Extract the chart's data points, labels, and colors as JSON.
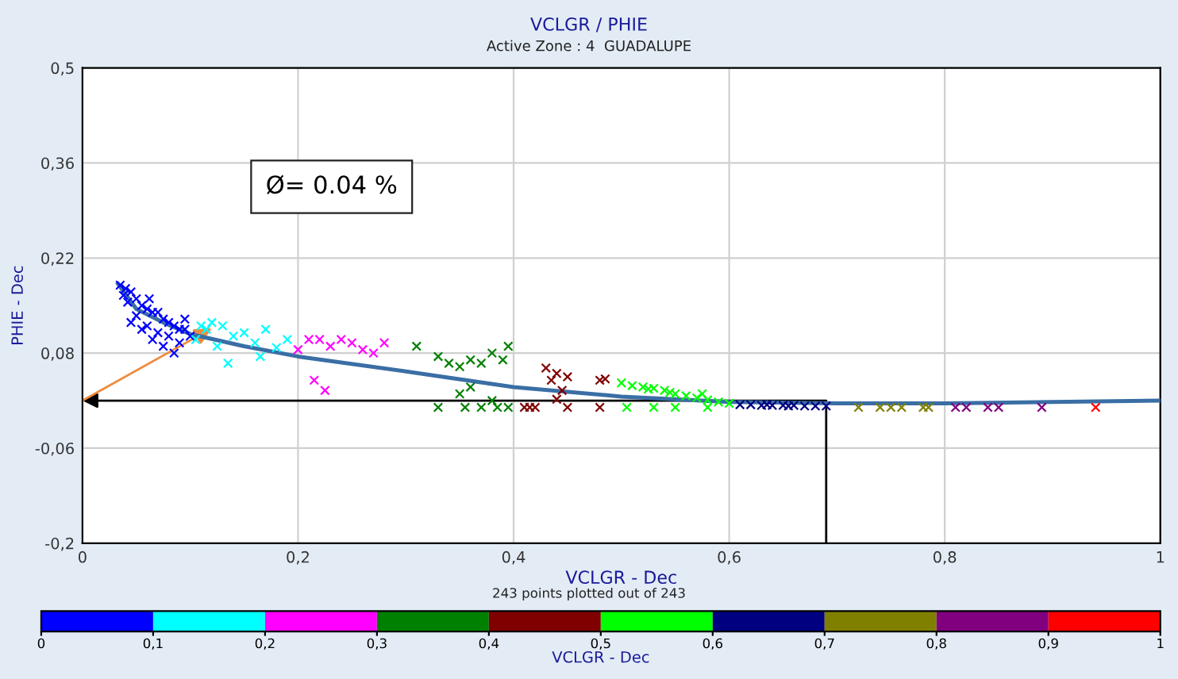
{
  "chart_data": {
    "type": "scatter",
    "title": "VCLGR / PHIE",
    "subtitle": "Active Zone : 4  GUADALUPE",
    "xlabel": "VCLGR - Dec",
    "ylabel": "PHIE - Dec",
    "clabel": "VCLGR - Dec",
    "annotations": [
      "243 points plotted out of 243",
      "Ø= 0.04 %"
    ],
    "xlim": [
      0,
      1
    ],
    "ylim": [
      -0.2,
      0.5
    ],
    "xticks": [
      0,
      {
        "value": 0.2,
        "label": "0,2"
      },
      {
        "value": 0.4,
        "label": "0,4"
      },
      {
        "value": 0.6,
        "label": "0,6"
      },
      {
        "value": 0.8,
        "label": "0,8"
      },
      1
    ],
    "yticks": [
      {
        "value": -0.2,
        "label": "-0,2"
      },
      {
        "value": -0.06,
        "label": "-0,06"
      },
      {
        "value": 0.08,
        "label": "0,08"
      },
      {
        "value": 0.22,
        "label": "0,22"
      },
      {
        "value": 0.36,
        "label": "0,36"
      },
      {
        "value": 0.5,
        "label": "0,5"
      }
    ],
    "clim": [
      0,
      1
    ],
    "cticks": [
      0,
      {
        "value": 0.1,
        "label": "0,1"
      },
      {
        "value": 0.2,
        "label": "0,2"
      },
      {
        "value": 0.3,
        "label": "0,3"
      },
      {
        "value": 0.4,
        "label": "0,4"
      },
      {
        "value": 0.5,
        "label": "0,5"
      },
      {
        "value": 0.6,
        "label": "0,6"
      },
      {
        "value": 0.7,
        "label": "0,7"
      },
      {
        "value": 0.8,
        "label": "0,8"
      },
      {
        "value": 0.9,
        "label": "0,9"
      },
      1
    ],
    "colors": [
      "#0000ff",
      "#00ffff",
      "#ff00ff",
      "#008000",
      "#800000",
      "#00ff00",
      "#000080",
      "#808000",
      "#800080",
      "#ff0000"
    ],
    "grid": true,
    "series": [
      {
        "type": "scatter",
        "color": "#0000ff",
        "marker": "cross",
        "x": [
          0.035,
          0.04,
          0.045,
          0.038,
          0.05,
          0.042,
          0.055,
          0.06,
          0.065,
          0.07,
          0.05,
          0.075,
          0.08,
          0.06,
          0.085,
          0.09,
          0.07,
          0.095,
          0.08,
          0.1,
          0.065,
          0.09,
          0.075,
          0.085,
          0.055,
          0.045,
          0.095,
          0.062
        ],
        "values": [
          0.18,
          0.175,
          0.17,
          0.165,
          0.16,
          0.155,
          0.15,
          0.145,
          0.14,
          0.14,
          0.135,
          0.13,
          0.125,
          0.12,
          0.12,
          0.115,
          0.11,
          0.115,
          0.105,
          0.105,
          0.1,
          0.095,
          0.09,
          0.08,
          0.115,
          0.125,
          0.13,
          0.16
        ]
      },
      {
        "color": "#00ffff",
        "marker": "cross",
        "x": [
          0.11,
          0.12,
          0.13,
          0.105,
          0.125,
          0.14,
          0.15,
          0.16,
          0.17,
          0.18,
          0.135,
          0.19,
          0.165,
          0.115
        ],
        "values": [
          0.12,
          0.125,
          0.12,
          0.1,
          0.09,
          0.105,
          0.11,
          0.095,
          0.115,
          0.088,
          0.065,
          0.1,
          0.075,
          0.115
        ]
      },
      {
        "color": "#ff00ff",
        "marker": "cross",
        "x": [
          0.21,
          0.22,
          0.23,
          0.24,
          0.25,
          0.26,
          0.27,
          0.215,
          0.225,
          0.2,
          0.28
        ],
        "values": [
          0.1,
          0.1,
          0.09,
          0.1,
          0.095,
          0.085,
          0.08,
          0.04,
          0.025,
          0.085,
          0.095
        ]
      },
      {
        "color": "#008000",
        "marker": "cross",
        "x": [
          0.31,
          0.33,
          0.35,
          0.36,
          0.37,
          0.38,
          0.39,
          0.395,
          0.34,
          0.35,
          0.36,
          0.38,
          0.385,
          0.37,
          0.395,
          0.33,
          0.355
        ],
        "values": [
          0.09,
          0.075,
          0.06,
          0.07,
          0.065,
          0.08,
          0.07,
          0.09,
          0.065,
          0.02,
          0.03,
          0.01,
          0.0,
          0.0,
          0.0,
          0.0,
          0.0
        ]
      },
      {
        "color": "#800000",
        "marker": "cross",
        "x": [
          0.43,
          0.44,
          0.435,
          0.45,
          0.445,
          0.44,
          0.48,
          0.485,
          0.41,
          0.415,
          0.42,
          0.45,
          0.48
        ],
        "values": [
          0.058,
          0.05,
          0.04,
          0.045,
          0.025,
          0.012,
          0.04,
          0.042,
          0.0,
          0.0,
          0.0,
          0.0,
          0.0
        ]
      },
      {
        "color": "#00ff00",
        "marker": "cross",
        "x": [
          0.5,
          0.51,
          0.52,
          0.53,
          0.54,
          0.55,
          0.56,
          0.57,
          0.58,
          0.59,
          0.6,
          0.505,
          0.53,
          0.55,
          0.58,
          0.525,
          0.545,
          0.575
        ],
        "values": [
          0.036,
          0.032,
          0.03,
          0.028,
          0.025,
          0.02,
          0.017,
          0.014,
          0.011,
          0.008,
          0.006,
          0.0,
          0.0,
          0.0,
          0.0,
          0.027,
          0.022,
          0.02
        ]
      },
      {
        "color": "#000080",
        "marker": "cross",
        "x": [
          0.61,
          0.62,
          0.63,
          0.64,
          0.65,
          0.66,
          0.67,
          0.68,
          0.69,
          0.635,
          0.655
        ],
        "values": [
          0.004,
          0.004,
          0.003,
          0.003,
          0.003,
          0.003,
          0.002,
          0.002,
          0.002,
          0.004,
          0.002
        ]
      },
      {
        "color": "#808000",
        "marker": "cross",
        "x": [
          0.72,
          0.74,
          0.75,
          0.76,
          0.78,
          0.785
        ],
        "values": [
          0.0,
          0.0,
          0.0,
          0.0,
          0.0,
          0.0
        ]
      },
      {
        "color": "#800080",
        "marker": "cross",
        "x": [
          0.81,
          0.82,
          0.84,
          0.85,
          0.89
        ],
        "values": [
          0.0,
          0.0,
          0.0,
          0.0,
          0.0
        ]
      },
      {
        "color": "#ff0000",
        "marker": "cross",
        "x": [
          0.94
        ],
        "values": [
          0.0
        ]
      },
      {
        "type": "line",
        "color": "#3a6ea5",
        "x": [
          0.033,
          0.05,
          0.075,
          0.1,
          0.15,
          0.2,
          0.3,
          0.4,
          0.5,
          0.6,
          0.7,
          0.8,
          0.9,
          1.0
        ],
        "values": [
          0.182,
          0.145,
          0.125,
          0.108,
          0.09,
          0.075,
          0.053,
          0.03,
          0.016,
          0.008,
          0.006,
          0.006,
          0.008,
          0.01
        ]
      }
    ]
  }
}
